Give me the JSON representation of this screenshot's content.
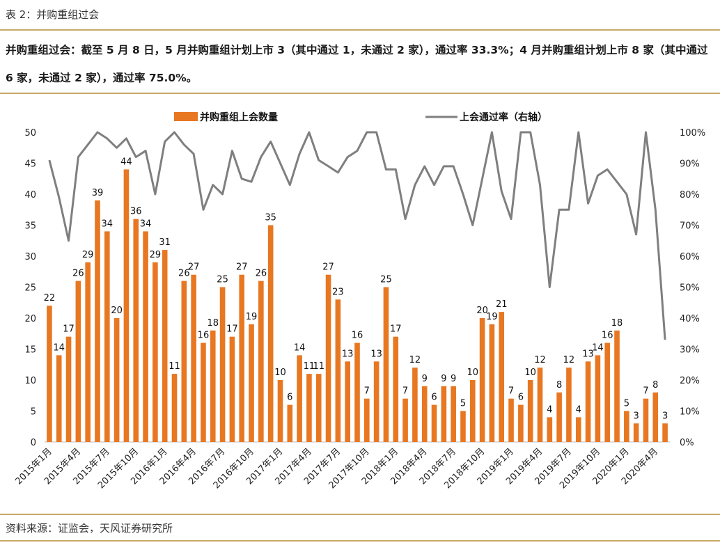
{
  "header": {
    "table_title": "表 2：并购重组过会",
    "summary": "并购重组过会：截至 5 月 8 日，5 月并购重组计划上市 3（其中通过 1，未通过 2 家），通过率 33.3%；4 月并购重组计划上市 8 家（其中通过 6 家，未通过 2 家），通过率 75.0%。"
  },
  "footer": {
    "source": "资料来源：证监会，天风证券研究所"
  },
  "colors": {
    "bar": "#E87722",
    "line": "#7F7F7F",
    "rule": "#C8A868"
  },
  "chart_data": {
    "type": "bar",
    "legend": {
      "bar_label": "并购重组上会数量",
      "line_label": "上会通过率（右轴）",
      "position": "top"
    },
    "x": [
      "2015年1月",
      "2015年2月",
      "2015年3月",
      "2015年4月",
      "2015年5月",
      "2015年6月",
      "2015年7月",
      "2015年8月",
      "2015年9月",
      "2015年10月",
      "2015年11月",
      "2015年12月",
      "2016年1月",
      "2016年2月",
      "2016年3月",
      "2016年4月",
      "2016年5月",
      "2016年6月",
      "2016年7月",
      "2016年8月",
      "2016年9月",
      "2016年10月",
      "2016年11月",
      "2016年12月",
      "2017年1月",
      "2017年2月",
      "2017年3月",
      "2017年4月",
      "2017年5月",
      "2017年6月",
      "2017年7月",
      "2017年8月",
      "2017年9月",
      "2017年10月",
      "2017年11月",
      "2017年12月",
      "2018年1月",
      "2018年2月",
      "2018年3月",
      "2018年4月",
      "2018年5月",
      "2018年6月",
      "2018年7月",
      "2018年8月",
      "2018年9月",
      "2018年10月",
      "2018年11月",
      "2018年12月",
      "2019年1月",
      "2019年2月",
      "2019年3月",
      "2019年4月",
      "2019年5月",
      "2019年6月",
      "2019年7月",
      "2019年8月",
      "2019年9月",
      "2019年10月",
      "2019年11月",
      "2019年12月",
      "2020年1月",
      "2020年2月",
      "2020年3月",
      "2020年4月",
      "2020年5月"
    ],
    "tick_labels": [
      "2015年1月",
      "2015年4月",
      "2015年7月",
      "2015年10月",
      "2016年1月",
      "2016年4月",
      "2016年7月",
      "2016年10月",
      "2017年1月",
      "2017年4月",
      "2017年7月",
      "2017年10月",
      "2018年1月",
      "2018年4月",
      "2018年7月",
      "2018年10月",
      "2019年1月",
      "2019年4月",
      "2019年7月",
      "2019年10月",
      "2020年1月",
      "2020年4月"
    ],
    "series": [
      {
        "name": "并购重组上会数量",
        "type": "bar",
        "axis": "left",
        "values": [
          22,
          14,
          17,
          26,
          29,
          39,
          34,
          20,
          44,
          36,
          34,
          29,
          31,
          11,
          26,
          27,
          16,
          18,
          25,
          17,
          27,
          19,
          26,
          35,
          10,
          6,
          14,
          11,
          11,
          27,
          23,
          13,
          16,
          7,
          13,
          25,
          17,
          7,
          12,
          9,
          6,
          9,
          9,
          5,
          10,
          20,
          19,
          21,
          7,
          6,
          10,
          12,
          4,
          8,
          12,
          4,
          13,
          14,
          16,
          18,
          5,
          3,
          7,
          8,
          3
        ]
      },
      {
        "name": "上会通过率（右轴）",
        "type": "line",
        "axis": "right",
        "values": [
          91,
          79,
          65,
          92,
          96,
          100,
          98,
          95,
          98,
          92,
          94,
          80,
          97,
          100,
          96,
          93,
          75,
          83,
          80,
          94,
          85,
          84,
          92,
          97,
          90,
          83,
          93,
          100,
          91,
          89,
          87,
          92,
          94,
          100,
          100,
          88,
          88,
          72,
          83,
          89,
          83,
          89,
          89,
          80,
          70,
          85,
          100,
          81,
          72,
          100,
          100,
          83,
          50,
          75,
          75,
          100,
          77,
          86,
          88,
          84,
          80,
          67,
          100,
          75,
          33
        ]
      }
    ],
    "y_left": {
      "min": 0,
      "max": 50,
      "ticks": [
        0,
        5,
        10,
        15,
        20,
        25,
        30,
        35,
        40,
        45,
        50
      ]
    },
    "y_right": {
      "min": 0,
      "max": 100,
      "ticks": [
        "0%",
        "10%",
        "20%",
        "30%",
        "40%",
        "50%",
        "60%",
        "70%",
        "80%",
        "90%",
        "100%"
      ]
    }
  }
}
